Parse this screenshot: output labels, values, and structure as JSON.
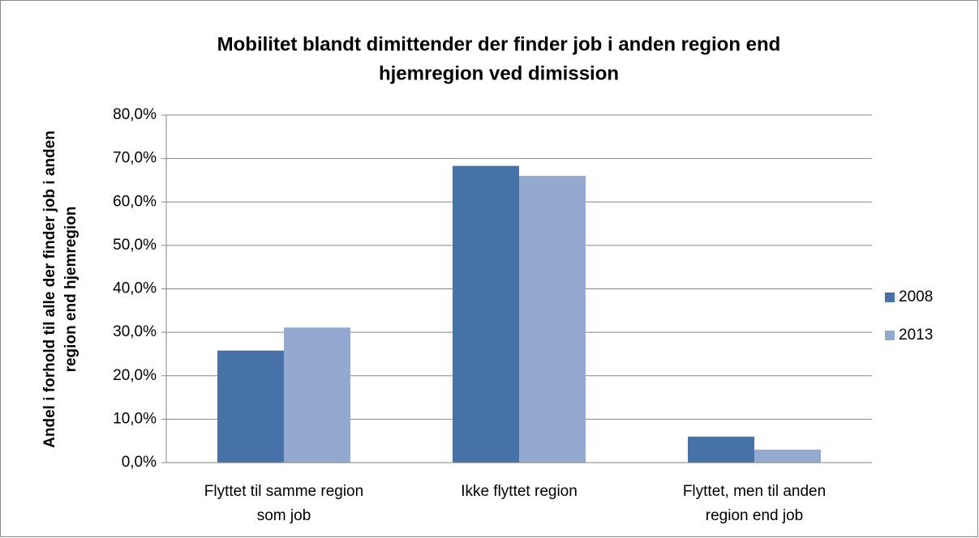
{
  "chart_data": {
    "type": "bar",
    "title": [
      "Mobilitet blandt dimittender der finder job i anden region end",
      "hjemregion ved dimission"
    ],
    "ylabel": [
      "Andel i forhold til alle der finder job i anden",
      "region end hjemregion"
    ],
    "categories": [
      [
        "Flyttet til samme region",
        "som job"
      ],
      [
        "Ikke flyttet region"
      ],
      [
        "Flyttet, men til anden",
        "region end job"
      ]
    ],
    "series": [
      {
        "name": "2008",
        "color": "#4672a8",
        "values": [
          25.8,
          68.3,
          6.0
        ]
      },
      {
        "name": "2013",
        "color": "#93a9d0",
        "values": [
          31.1,
          66.0,
          3.0
        ]
      }
    ],
    "ylim": [
      0,
      80
    ],
    "yticks": [
      {
        "value": 0,
        "label": "0,0%"
      },
      {
        "value": 10,
        "label": "10,0%"
      },
      {
        "value": 20,
        "label": "20,0%"
      },
      {
        "value": 30,
        "label": "30,0%"
      },
      {
        "value": 40,
        "label": "40,0%"
      },
      {
        "value": 50,
        "label": "50,0%"
      },
      {
        "value": 60,
        "label": "60,0%"
      },
      {
        "value": 70,
        "label": "70,0%"
      },
      {
        "value": 80,
        "label": "80,0%"
      }
    ],
    "grid": true,
    "legend": "right"
  }
}
